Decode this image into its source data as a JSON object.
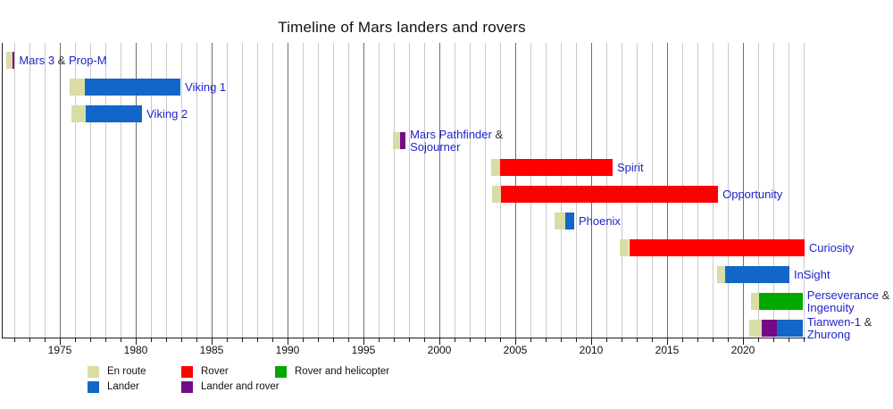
{
  "chart_data": {
    "type": "bar",
    "subtype": "horizontal-timeline-gantt",
    "title": "Timeline of Mars landers and rovers",
    "x_axis": {
      "unit": "year",
      "range": [
        1971.2,
        2024.2
      ],
      "major_tick_labels": [
        "1975",
        "1980",
        "1985",
        "1990",
        "1995",
        "2000",
        "2005",
        "2010",
        "2015",
        "2020"
      ],
      "major_tick_years": [
        1975,
        1980,
        1985,
        1990,
        1995,
        2000,
        2005,
        2010,
        2015,
        2020
      ],
      "minor_tick_interval_years": 1,
      "grid": true
    },
    "colors": {
      "en_route": "#dadca6",
      "lander": "#1166c8",
      "rover": "#ff0000",
      "rover_and_helicopter": "#00a800",
      "lander_and_rover": "#730b86",
      "link_text": "#2222cd",
      "plain_text": "#333333",
      "grid_minor": "#c9c9c9",
      "grid_major": "#6e6e6e",
      "axis": "#1a1a1a"
    },
    "legend_position": "bottom",
    "legend_rows": [
      [
        {
          "kind": "en_route",
          "label": "En route"
        },
        {
          "kind": "rover",
          "label": "Rover"
        },
        {
          "kind": "rover_and_helicopter",
          "label": "Rover and helicopter"
        }
      ],
      [
        {
          "kind": "lander",
          "label": "Lander"
        },
        {
          "kind": "lander_and_rover",
          "label": "Lander and rover"
        }
      ]
    ],
    "missions": [
      {
        "slug": "mars-3-prop-m",
        "label_lines": [
          [
            {
              "text": "Mars 3 ",
              "style": "link"
            },
            {
              "text": "& ",
              "style": "plain"
            },
            {
              "text": "Prop-M",
              "style": "link"
            }
          ]
        ],
        "segments": [
          {
            "kind": "en_route",
            "start": 1971.45,
            "end": 1971.9
          },
          {
            "kind": "lander_and_rover",
            "start": 1971.9,
            "end": 1972.02
          }
        ]
      },
      {
        "slug": "viking-1",
        "label_lines": [
          [
            {
              "text": "Viking 1",
              "style": "link"
            }
          ]
        ],
        "segments": [
          {
            "kind": "en_route",
            "start": 1975.62,
            "end": 1976.65
          },
          {
            "kind": "lander",
            "start": 1976.65,
            "end": 1982.95
          }
        ]
      },
      {
        "slug": "viking-2",
        "label_lines": [
          [
            {
              "text": "Viking 2",
              "style": "link"
            }
          ]
        ],
        "segments": [
          {
            "kind": "en_route",
            "start": 1975.76,
            "end": 1976.71
          },
          {
            "kind": "lander",
            "start": 1976.71,
            "end": 1980.42
          }
        ]
      },
      {
        "slug": "mars-pathfinder-sojourner",
        "label_lines": [
          [
            {
              "text": "Mars Pathfinder ",
              "style": "link"
            },
            {
              "text": "&",
              "style": "plain"
            }
          ],
          [
            {
              "text": "Sojourner",
              "style": "link"
            }
          ]
        ],
        "segments": [
          {
            "kind": "en_route",
            "start": 1996.94,
            "end": 1997.44
          },
          {
            "kind": "lander_and_rover",
            "start": 1997.44,
            "end": 1997.77
          }
        ]
      },
      {
        "slug": "spirit",
        "label_lines": [
          [
            {
              "text": "Spirit",
              "style": "link"
            }
          ]
        ],
        "segments": [
          {
            "kind": "en_route",
            "start": 2003.41,
            "end": 2004.0
          },
          {
            "kind": "rover",
            "start": 2004.0,
            "end": 2011.41
          }
        ]
      },
      {
        "slug": "opportunity",
        "label_lines": [
          [
            {
              "text": "Opportunity",
              "style": "link"
            }
          ]
        ],
        "segments": [
          {
            "kind": "en_route",
            "start": 2003.47,
            "end": 2004.06
          },
          {
            "kind": "rover",
            "start": 2004.06,
            "end": 2018.36
          }
        ]
      },
      {
        "slug": "phoenix",
        "label_lines": [
          [
            {
              "text": "Phoenix",
              "style": "link"
            }
          ]
        ],
        "segments": [
          {
            "kind": "en_route",
            "start": 2007.59,
            "end": 2008.3
          },
          {
            "kind": "lander",
            "start": 2008.3,
            "end": 2008.88
          }
        ]
      },
      {
        "slug": "curiosity",
        "label_lines": [
          [
            {
              "text": "Curiosity",
              "style": "link"
            }
          ]
        ],
        "segments": [
          {
            "kind": "en_route",
            "start": 2011.88,
            "end": 2012.5
          },
          {
            "kind": "rover",
            "start": 2012.5,
            "end": 2024.05
          }
        ]
      },
      {
        "slug": "insight",
        "label_lines": [
          [
            {
              "text": "InSight",
              "style": "link"
            }
          ]
        ],
        "segments": [
          {
            "kind": "en_route",
            "start": 2018.29,
            "end": 2018.85
          },
          {
            "kind": "lander",
            "start": 2018.85,
            "end": 2023.06
          }
        ]
      },
      {
        "slug": "perseverance-ingenuity",
        "label_lines": [
          [
            {
              "text": "Perseverance ",
              "style": "link"
            },
            {
              "text": "&",
              "style": "plain"
            }
          ],
          [
            {
              "text": "Ingenuity",
              "style": "link"
            }
          ]
        ],
        "segments": [
          {
            "kind": "en_route",
            "start": 2020.5,
            "end": 2021.06
          },
          {
            "kind": "rover_and_helicopter",
            "start": 2021.06,
            "end": 2023.93
          }
        ]
      },
      {
        "slug": "tianwen-1-zhurong",
        "label_lines": [
          [
            {
              "text": "Tianwen-1 ",
              "style": "link"
            },
            {
              "text": "&",
              "style": "plain"
            }
          ],
          [
            {
              "text": "Zhurong",
              "style": "link"
            }
          ]
        ],
        "segments": [
          {
            "kind": "en_route",
            "start": 2020.39,
            "end": 2021.26
          },
          {
            "kind": "lander_and_rover",
            "start": 2021.26,
            "end": 2022.25
          },
          {
            "kind": "lander",
            "start": 2022.25,
            "end": 2023.93
          }
        ]
      }
    ]
  }
}
